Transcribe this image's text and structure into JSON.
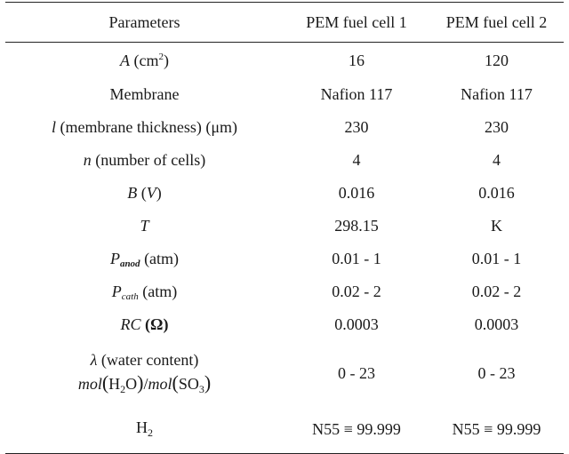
{
  "headers": [
    "Parameters",
    "PEM fuel cell 1",
    "PEM fuel cell 2"
  ],
  "rows": [
    {
      "p": {
        "sym": "A",
        "unit_pre": " (cm",
        "sup": "2",
        "unit_post": ")"
      },
      "v1": "16",
      "v2": "120"
    },
    {
      "p": {
        "text": "Membrane"
      },
      "v1": "Nafion 117",
      "v2": "Nafion 117"
    },
    {
      "p": {
        "sym": "l",
        "text": " (membrane thickness) (μm)"
      },
      "v1": "230",
      "v2": "230"
    },
    {
      "p": {
        "sym": "n",
        "text": " (number of cells)"
      },
      "v1": "4",
      "v2": "4"
    },
    {
      "p": {
        "sym": "B",
        "text_pre": " (",
        "sym2": "V",
        "text_post": ")"
      },
      "v1": "0.016",
      "v2": "0.016"
    },
    {
      "p": {
        "sym": "T"
      },
      "v1": "298.15",
      "v2": "K"
    },
    {
      "p": {
        "sym": "P",
        "sub": "anod",
        "text": " (atm)"
      },
      "v1": "0.01 - 1",
      "v2": "0.01 - 1"
    },
    {
      "p": {
        "sym": "P",
        "sub": "cath",
        "text": " (atm)"
      },
      "v1": "0.02 - 2",
      "v2": "0.02 - 2"
    },
    {
      "p": {
        "sym": "RC",
        "text": " (Ω)"
      },
      "v1": "0.0003",
      "v2": "0.0003"
    },
    {
      "p": {
        "sym": "λ",
        "text": " (water content)",
        "line2_sym1": "mol",
        "line2_f1": "H",
        "line2_f1_sub": "2",
        "line2_f1_post": "O",
        "line2_slash": "/",
        "line2_sym2": "mol",
        "line2_f2": "SO",
        "line2_f2_sub": "3"
      },
      "v1": "0 - 23",
      "v2": "0 - 23"
    },
    {
      "p": {
        "text": "H",
        "sub": "2"
      },
      "v1": "N55 ≡ 99.999",
      "v2": "N55 ≡ 99.999"
    }
  ]
}
